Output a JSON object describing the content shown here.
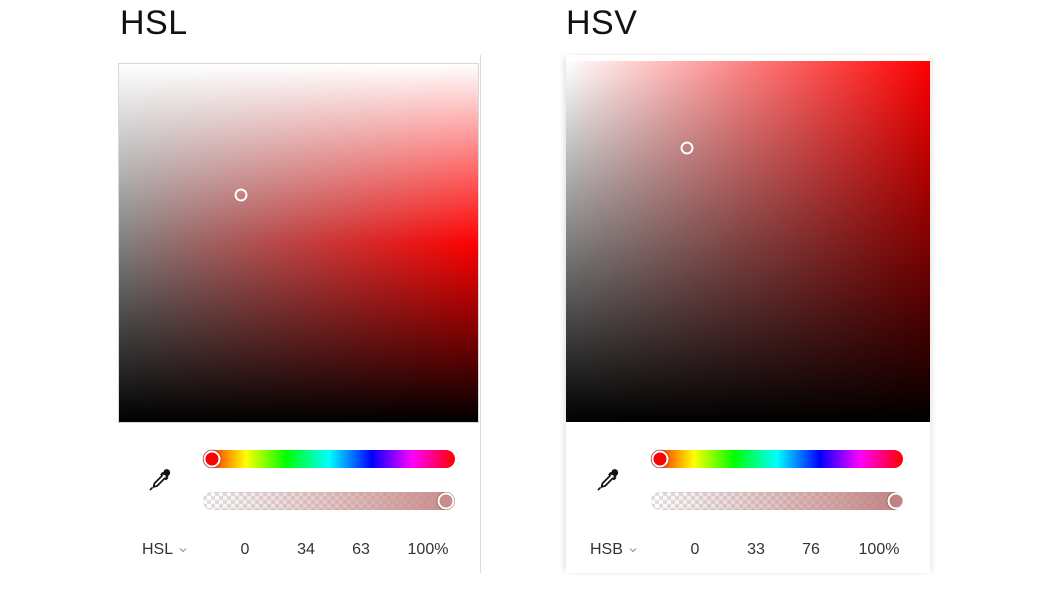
{
  "titles": {
    "left": "HSL",
    "right": "HSV"
  },
  "hsl_picker": {
    "hue": 0,
    "saturation": 34,
    "lightness": 63,
    "alpha_percent": 100,
    "thumb_color": "#c98b8b",
    "mode_label": "HSL",
    "values": [
      "0",
      "34",
      "63",
      "100%"
    ]
  },
  "hsv_picker": {
    "hue": 0,
    "saturation": 33,
    "brightness": 76,
    "alpha_percent": 100,
    "thumb_color": "#c28282",
    "mode_label": "HSB",
    "values": [
      "0",
      "33",
      "76",
      "100%"
    ]
  },
  "icons": {
    "eyedropper": "eyedropper-icon",
    "chevron": "chevron-down-icon"
  },
  "colors": {
    "hue_thumb": "#ff0000"
  }
}
